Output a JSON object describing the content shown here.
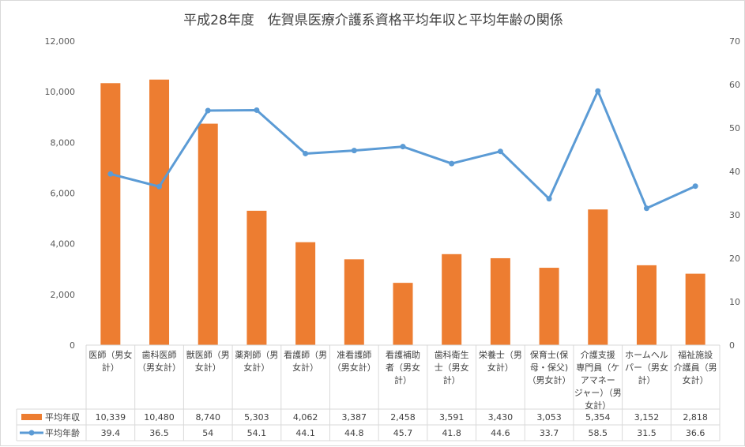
{
  "chart_data": {
    "type": "bar",
    "title": "平成28年度　佐賀県医療介護系資格平均年収と平均年齢の関係",
    "categories": [
      [
        "医師（男女",
        "計）"
      ],
      [
        "歯科医師",
        "（男女計）"
      ],
      [
        "獣医師（男",
        "女計）"
      ],
      [
        "薬剤師（男",
        "女計）"
      ],
      [
        "看護師（男",
        "女計）"
      ],
      [
        "准看護師",
        "（男女計）"
      ],
      [
        "看護補助",
        "者（男女",
        "計）"
      ],
      [
        "歯科衛生",
        "士（男女",
        "計）"
      ],
      [
        "栄養士（男",
        "女計）"
      ],
      [
        "保育士(保",
        "母・保父)",
        "（男女計）"
      ],
      [
        "介護支援",
        "専門員（ケ",
        "アマネー",
        "ジャー）（男",
        "女計）"
      ],
      [
        "ホームヘル",
        "パー（男女",
        "計）"
      ],
      [
        "福祉施設",
        "介護員（男",
        "女計）"
      ]
    ],
    "series": [
      {
        "name": "平均年収",
        "type": "bar",
        "axis": "left",
        "color": "#ed7d31",
        "values": [
          10339,
          10480,
          8740,
          5303,
          4062,
          3387,
          2458,
          3591,
          3430,
          3053,
          5354,
          3152,
          2818
        ],
        "labels": [
          "10,339",
          "10,480",
          "8,740",
          "5,303",
          "4,062",
          "3,387",
          "2,458",
          "3,591",
          "3,430",
          "3,053",
          "5,354",
          "3,152",
          "2,818"
        ]
      },
      {
        "name": "平均年齢",
        "type": "line",
        "axis": "right",
        "color": "#5b9bd5",
        "values": [
          39.4,
          36.5,
          54,
          54.1,
          44.1,
          44.8,
          45.7,
          41.8,
          44.6,
          33.7,
          58.5,
          31.5,
          36.6
        ],
        "labels": [
          "39.4",
          "36.5",
          "54",
          "54.1",
          "44.1",
          "44.8",
          "45.7",
          "41.8",
          "44.6",
          "33.7",
          "58.5",
          "31.5",
          "36.6"
        ]
      }
    ],
    "y_left": {
      "min": 0,
      "max": 12000,
      "ticks": [
        "0",
        "2,000",
        "4,000",
        "6,000",
        "8,000",
        "10,000",
        "12,000"
      ]
    },
    "y_right": {
      "min": 0,
      "max": 70,
      "ticks": [
        "0",
        "10",
        "20",
        "30",
        "40",
        "50",
        "60",
        "70"
      ]
    },
    "grid": false,
    "legend": "data-table"
  }
}
